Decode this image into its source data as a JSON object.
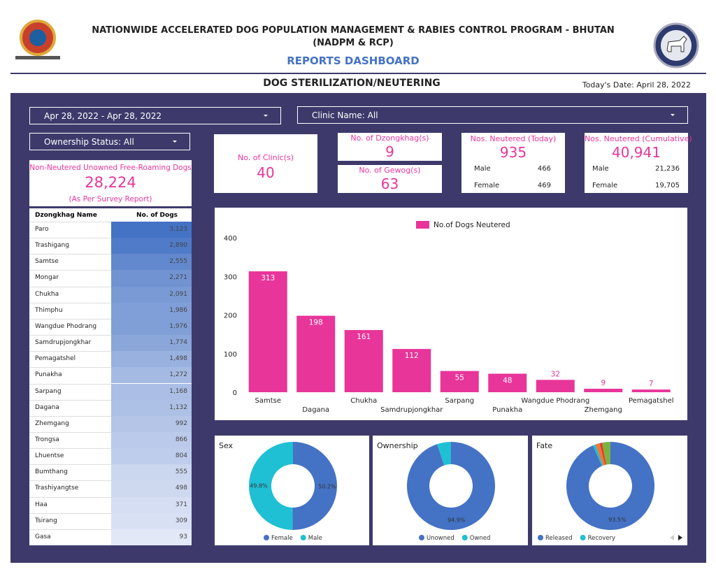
{
  "header": {
    "title": "NATIONWIDE ACCELERATED DOG POPULATION MANAGEMENT & RABIES CONTROL PROGRAM - BHUTAN",
    "subtitle": "(NADPM & RCP)",
    "dashboard": "REPORTS DASHBOARD"
  },
  "section": {
    "title": "DOG STERILIZATION/NEUTERING",
    "date": "Today's Date: April 28, 2022"
  },
  "filters": {
    "date_range": "Apr 28, 2022 - Apr 28, 2022",
    "clinic": "Clinic Name: All",
    "ownership": "Ownership Status: All"
  },
  "kpis": {
    "clinics": {
      "label": "No. of Clinic(s)",
      "value": "40"
    },
    "dzongkhags": {
      "label": "No. of Dzongkhag(s)",
      "value": "9"
    },
    "gewogs": {
      "label": "No. of Gewog(s)",
      "value": "63"
    },
    "today": {
      "label": "Nos. Neutered (Today)",
      "value": "935",
      "male_label": "Male",
      "male": "466",
      "female_label": "Female",
      "female": "469"
    },
    "cumulative": {
      "label": "Nos. Neutered (Cumulative)",
      "value": "40,941",
      "male_label": "Male",
      "male": "21,236",
      "female_label": "Female",
      "female": "19,705"
    }
  },
  "table": {
    "title": "Non-Neutered Unowned Free-Roaming Dogs",
    "total": "28,224",
    "note": "(As Per Survey Report)",
    "columns": [
      "Dzongkhag Name",
      "No. of Dogs"
    ],
    "rows": [
      [
        "Paro",
        {
          "value": 3123,
          "label": "3,123"
        }
      ],
      [
        "Trashigang",
        {
          "value": 2890,
          "label": "2,890"
        }
      ],
      [
        "Samtse",
        {
          "value": 2555,
          "label": "2,555"
        }
      ],
      [
        "Mongar",
        {
          "value": 2271,
          "label": "2,271"
        }
      ],
      [
        "Chukha",
        {
          "value": 2091,
          "label": "2,091"
        }
      ],
      [
        "Thimphu",
        {
          "value": 1986,
          "label": "1,986"
        }
      ],
      [
        "Wangdue Phodrang",
        {
          "value": 1976,
          "label": "1,976"
        }
      ],
      [
        "Samdrupjongkhar",
        {
          "value": 1774,
          "label": "1,774"
        }
      ],
      [
        "Pemagatshel",
        {
          "value": 1498,
          "label": "1,498"
        }
      ],
      [
        "Punakha",
        {
          "value": 1272,
          "label": "1,272"
        }
      ],
      [
        "Sarpang",
        {
          "value": 1168,
          "label": "1,168"
        }
      ],
      [
        "Dagana",
        {
          "value": 1132,
          "label": "1,132"
        }
      ],
      [
        "Zhemgang",
        {
          "value": 992,
          "label": "992"
        }
      ],
      [
        "Trongsa",
        {
          "value": 866,
          "label": "866"
        }
      ],
      [
        "Lhuentse",
        {
          "value": 804,
          "label": "804"
        }
      ],
      [
        "Bumthang",
        {
          "value": 555,
          "label": "555"
        }
      ],
      [
        "Trashiyangtse",
        {
          "value": 498,
          "label": "498"
        }
      ],
      [
        "Haa",
        {
          "value": 371,
          "label": "371"
        }
      ],
      [
        "Tsirang",
        {
          "value": 309,
          "label": "309"
        }
      ],
      [
        "Gasa",
        {
          "value": 93,
          "label": "93"
        }
      ]
    ]
  },
  "chart_data": [
    {
      "type": "bar",
      "series_name": "No.of Dogs Neutered",
      "color": "#e8359a",
      "categories": [
        "Samtse",
        "Dagana",
        "Chukha",
        "Samdrupjongkhar",
        "Sarpang",
        "Punakha",
        "Wangdue Phodrang",
        "Zhemgang",
        "Pemagatshel"
      ],
      "values": [
        313,
        198,
        161,
        112,
        55,
        48,
        32,
        9,
        7
      ],
      "ylim": [
        0,
        400
      ],
      "yticks": [
        0,
        100,
        200,
        300,
        400
      ],
      "grid": false
    },
    {
      "type": "pie",
      "title": "Sex",
      "categories": [
        "Female",
        "Male"
      ],
      "values": [
        50.2,
        49.8
      ],
      "value_labels": [
        "50.2%",
        "49.8%"
      ],
      "colors": [
        "#4472c4",
        "#1fbfd4"
      ]
    },
    {
      "type": "pie",
      "title": "Ownership",
      "categories": [
        "Unowned",
        "Owned"
      ],
      "values": [
        94.9,
        5.1
      ],
      "value_labels": [
        "94.9%",
        null
      ],
      "colors": [
        "#4472c4",
        "#1fbfd4"
      ]
    },
    {
      "type": "pie",
      "title": "Fate",
      "categories": [
        "Released",
        "Recovery",
        null,
        null,
        null
      ],
      "values": [
        93.5,
        1.0,
        1.5,
        1.0,
        3.0
      ],
      "value_labels": [
        "93.5%",
        null,
        null,
        null,
        null
      ],
      "colors": [
        "#4472c4",
        "#1fbfd4",
        "#f4772e",
        "#e0403a",
        "#7bb342"
      ]
    }
  ]
}
